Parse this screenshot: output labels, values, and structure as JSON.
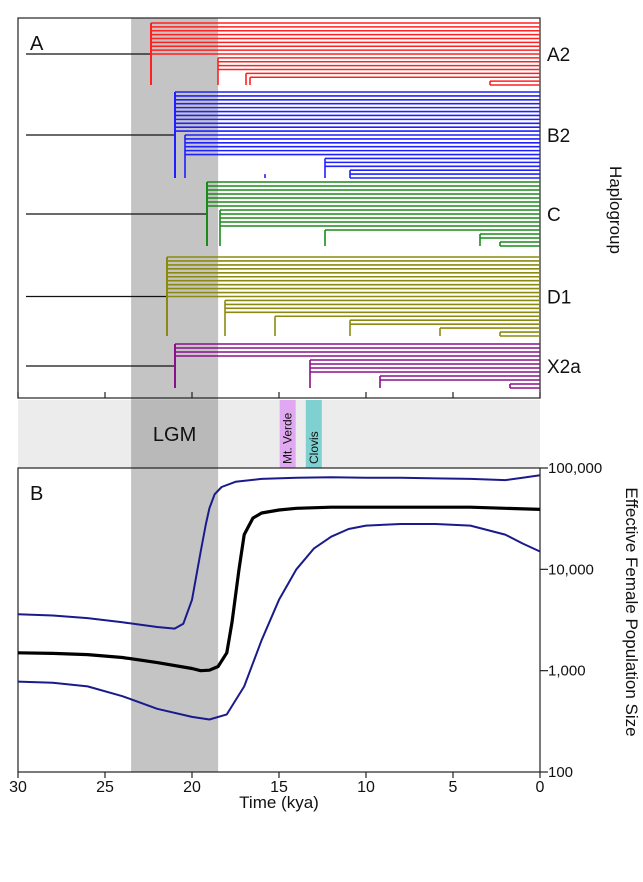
{
  "panel_a": {
    "label": "A",
    "haplogroup_axis_label": "Haplogroup",
    "clades": [
      {
        "name": "A2",
        "color": "#ff2020"
      },
      {
        "name": "B2",
        "color": "#2020ff"
      },
      {
        "name": "C",
        "color": "#1a8a1a"
      },
      {
        "name": "D1",
        "color": "#8a8a10"
      },
      {
        "name": "X2a",
        "color": "#8a108a"
      }
    ]
  },
  "band": {
    "lgm_label": "LGM",
    "lgm_range_kya": [
      23.5,
      18.5
    ],
    "events": [
      {
        "label": "Mt. Verde",
        "time_kya": 14.5,
        "color": "#e0a8f0"
      },
      {
        "label": "Clovis",
        "time_kya": 13.0,
        "color": "#7fd0d0"
      }
    ]
  },
  "chart_data": {
    "type": "line",
    "title": "",
    "panel_label": "B",
    "xlabel": "Time (kya)",
    "ylabel": "Effective Female Population Size",
    "xlim": [
      30,
      0
    ],
    "ylim": [
      100,
      100000
    ],
    "yscale": "log",
    "x_ticks": [
      "30",
      "25",
      "20",
      "15",
      "10",
      "5",
      "0"
    ],
    "y_ticks": [
      "100",
      "1,000",
      "10,000",
      "100,000"
    ],
    "series": [
      {
        "role": "upper",
        "color": "#1a1a8c",
        "x": [
          30,
          28,
          26,
          24,
          22,
          21,
          20.5,
          20,
          19.5,
          19.2,
          19,
          18.7,
          18.3,
          17.5,
          16,
          14,
          12,
          10,
          8,
          6,
          4,
          2,
          1,
          0
        ],
        "y": [
          3600,
          3500,
          3300,
          3000,
          2700,
          2600,
          2900,
          5000,
          15000,
          28000,
          40000,
          55000,
          65000,
          73000,
          78000,
          80000,
          81000,
          80000,
          80000,
          79000,
          78000,
          76000,
          80000,
          85000
        ]
      },
      {
        "role": "median",
        "color": "#000000",
        "x": [
          30,
          28,
          26,
          24,
          22,
          20,
          19.5,
          19,
          18.5,
          18,
          17.7,
          17.3,
          17,
          16.5,
          16,
          15,
          14,
          12,
          10,
          8,
          6,
          4,
          2,
          0
        ],
        "y": [
          1500,
          1480,
          1440,
          1350,
          1200,
          1050,
          1000,
          1010,
          1100,
          1500,
          3000,
          10000,
          22000,
          32000,
          36000,
          38500,
          40000,
          41000,
          41000,
          41000,
          41000,
          41000,
          40000,
          39000
        ]
      },
      {
        "role": "lower",
        "color": "#1a1a8c",
        "x": [
          30,
          28,
          26,
          24,
          22,
          20,
          19,
          18,
          17,
          16,
          15,
          14,
          13,
          12,
          11,
          10,
          8,
          6,
          4,
          2,
          1,
          0
        ],
        "y": [
          780,
          760,
          700,
          560,
          420,
          350,
          330,
          370,
          700,
          2000,
          5000,
          10000,
          16000,
          21000,
          25000,
          27000,
          28000,
          28000,
          27000,
          22000,
          18000,
          15000
        ]
      }
    ]
  }
}
